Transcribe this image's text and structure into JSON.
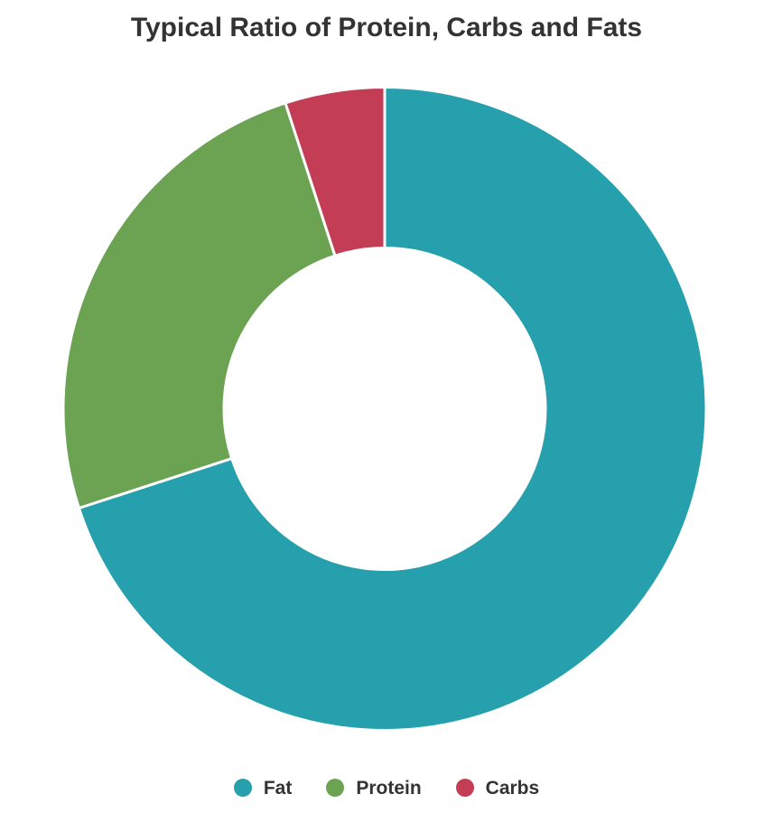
{
  "page": {
    "background_color": "#ffffff"
  },
  "chart_data": {
    "type": "pie",
    "subtype": "donut",
    "title": "Typical Ratio of Protein, Carbs and Fats",
    "categories": [
      "Fat",
      "Protein",
      "Carbs"
    ],
    "values": [
      70,
      25,
      5
    ],
    "unit": "percent",
    "colors": [
      "#25a0ac",
      "#6ba352",
      "#c33e55"
    ],
    "start_angle_deg": 0,
    "direction": "clockwise",
    "donut_hole_ratio": 0.5,
    "slice_border_color": "#ffffff",
    "title_color": "#333333",
    "legend": {
      "position": "bottom",
      "text_color": "#333333",
      "entries": [
        "Fat",
        "Protein",
        "Carbs"
      ]
    }
  }
}
